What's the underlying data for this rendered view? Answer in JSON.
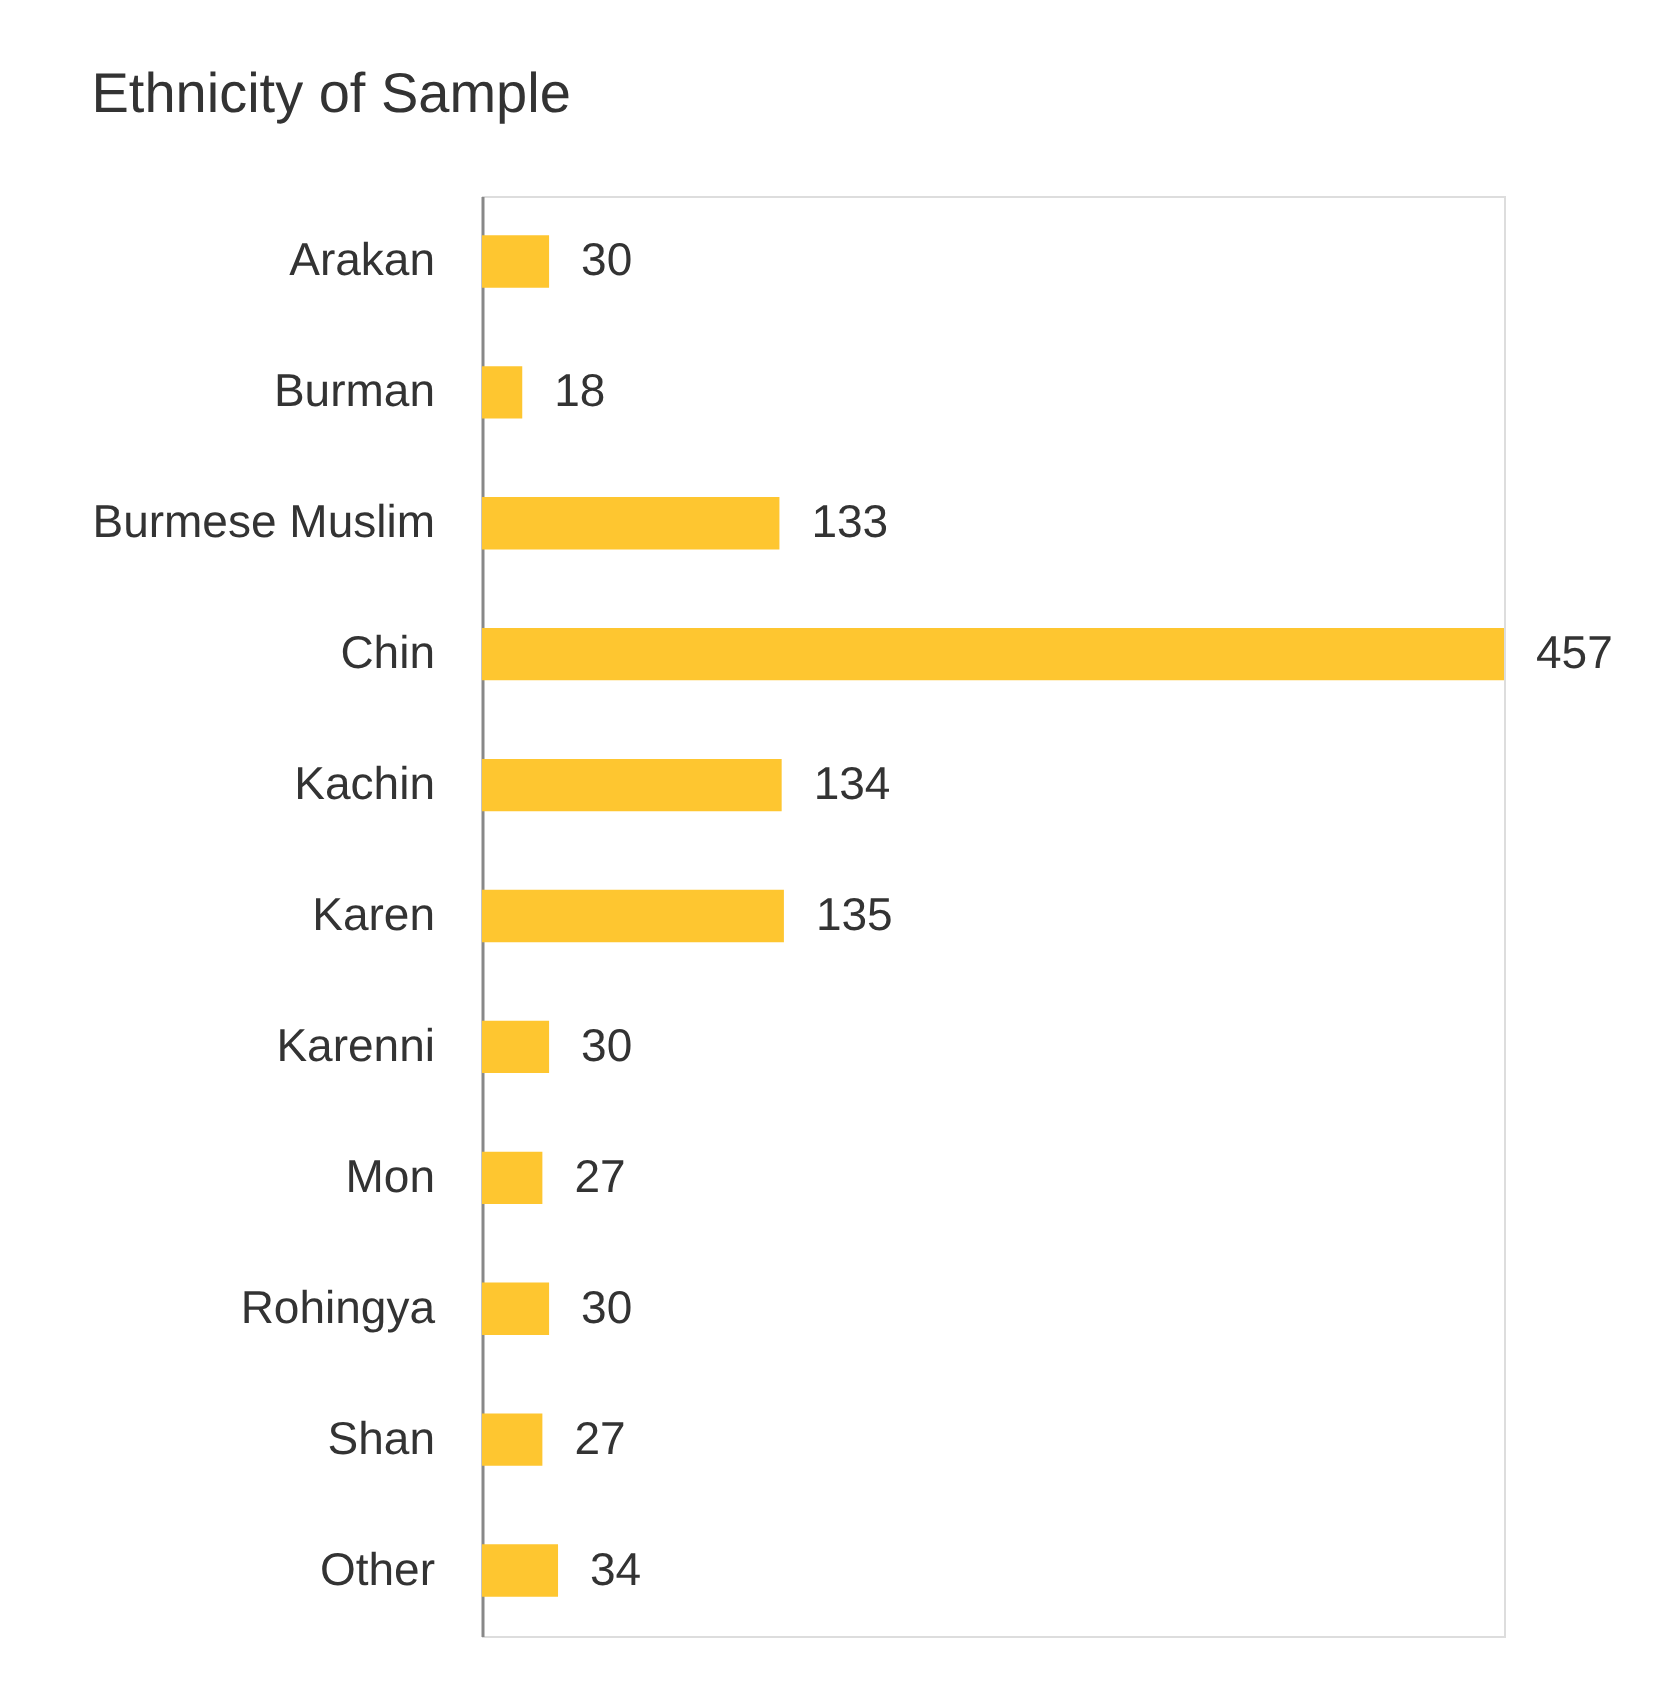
{
  "chart_data": {
    "type": "bar",
    "orientation": "horizontal",
    "title": "Ethnicity of Sample",
    "categories": [
      "Arakan",
      "Burman",
      "Burmese Muslim",
      "Chin",
      "Kachin",
      "Karen",
      "Karenni",
      "Mon",
      "Rohingya",
      "Shan",
      "Other"
    ],
    "values": [
      30,
      18,
      133,
      457,
      134,
      135,
      30,
      27,
      30,
      27,
      34
    ],
    "color": "#fec630",
    "data_labels": true
  }
}
